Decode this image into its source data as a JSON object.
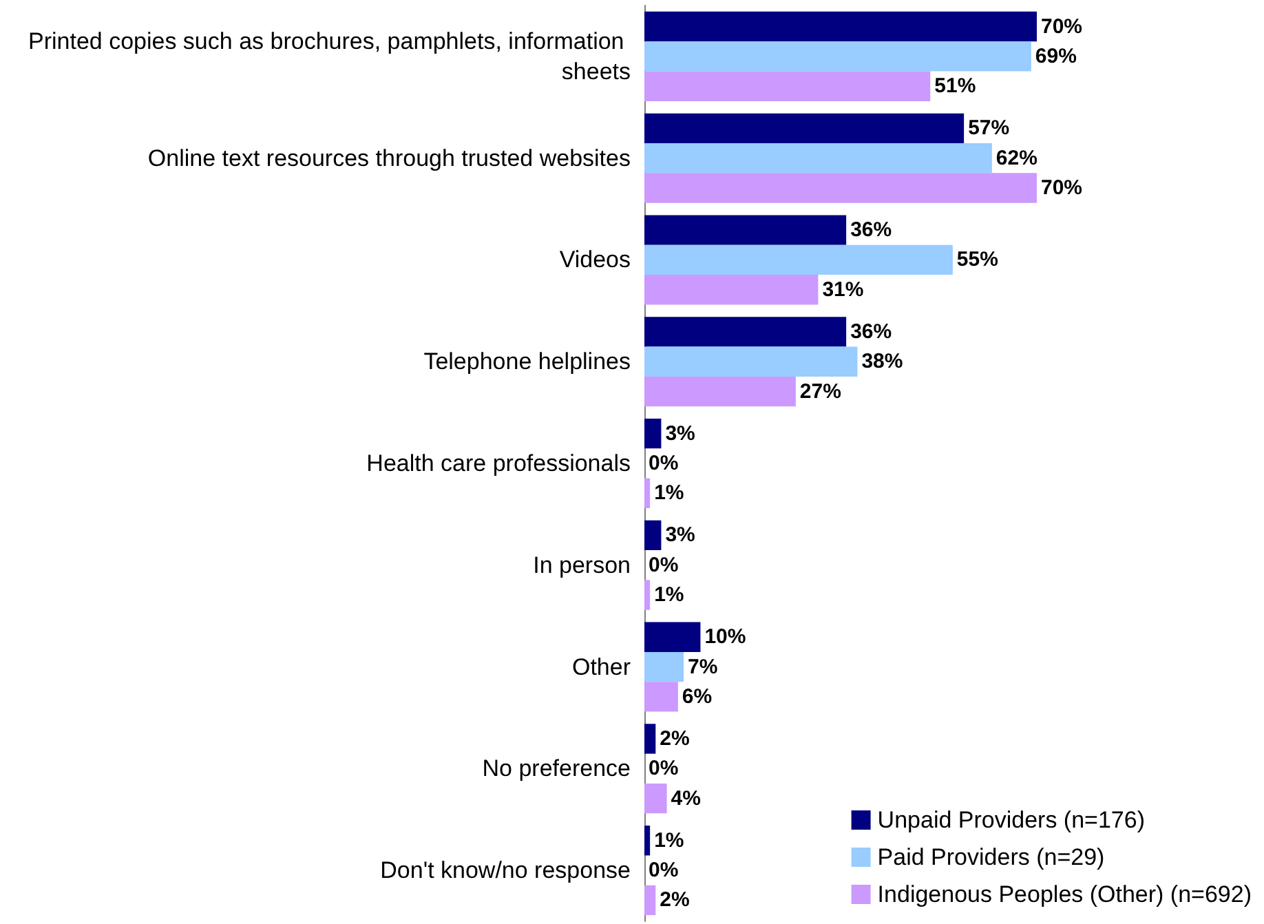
{
  "chart_data": {
    "type": "bar",
    "orientation": "horizontal",
    "legend": "bottom right",
    "categories": [
      "Printed copies such as brochures, pamphlets, information sheets",
      "Online text resources through trusted websites",
      "Videos",
      "Telephone helplines",
      "Health care professionals",
      "In person",
      "Other",
      "No preference",
      "Don't know/no response"
    ],
    "series": [
      {
        "name": "Unpaid Providers (n=176)",
        "color": "#000080",
        "values": [
          70,
          57,
          36,
          36,
          3,
          3,
          10,
          2,
          1
        ],
        "value_labels": [
          "70%",
          "57%",
          "36%",
          "36%",
          "3%",
          "3%",
          "10%",
          "2%",
          "1%"
        ]
      },
      {
        "name": "Paid Providers (n=29)",
        "color": "#99ccff",
        "values": [
          69,
          62,
          55,
          38,
          0,
          0,
          7,
          0,
          0
        ],
        "value_labels": [
          "69%",
          "62%",
          "55%",
          "38%",
          "0%",
          "0%",
          "7%",
          "0%",
          "0%"
        ]
      },
      {
        "name": "Indigenous Peoples (Other) (n=692)",
        "color": "#cc99ff",
        "values": [
          51,
          70,
          31,
          27,
          1,
          1,
          6,
          4,
          2
        ],
        "value_labels": [
          "51%",
          "70%",
          "31%",
          "27%",
          "1%",
          "1%",
          "6%",
          "4%",
          "2%"
        ]
      }
    ]
  }
}
